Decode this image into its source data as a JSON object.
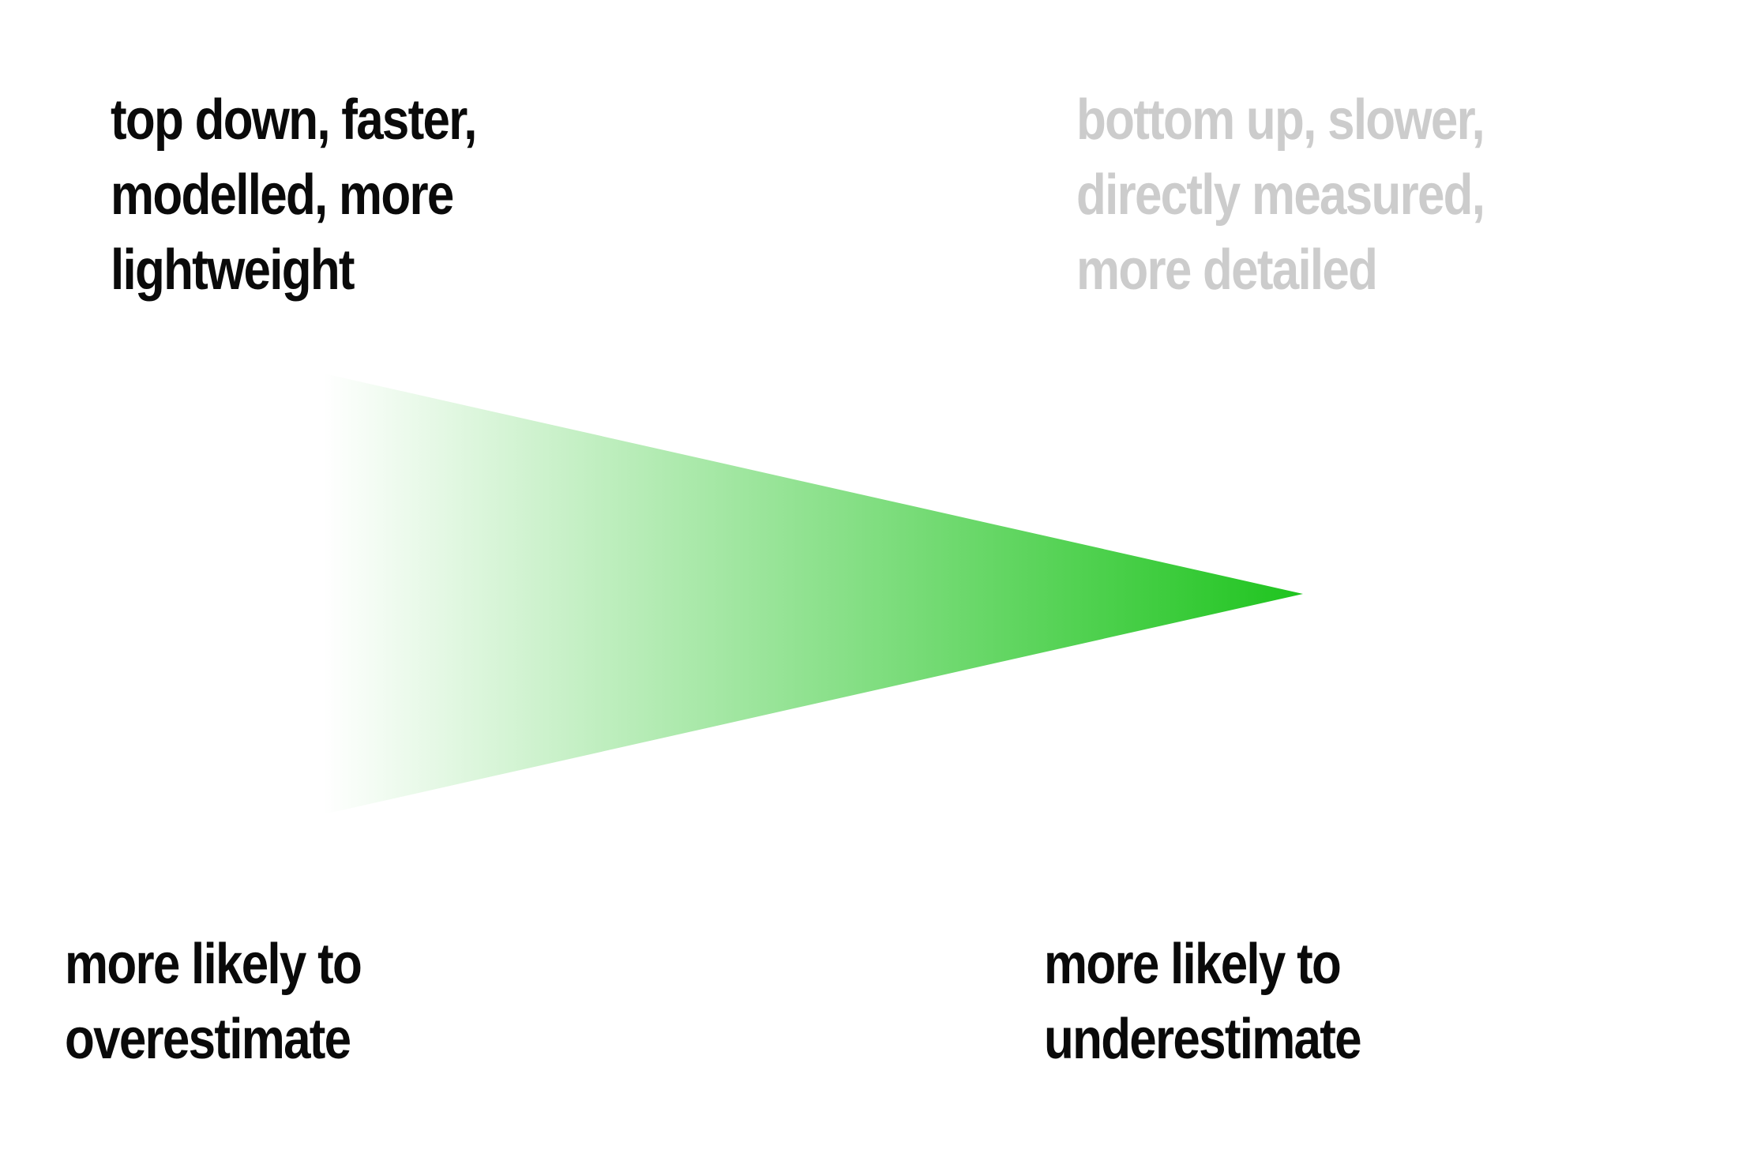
{
  "labels": {
    "top_left": "top down, faster,\nmodelled, more\nlightweight",
    "top_right": "bottom up, slower,\ndirectly measured,\nmore detailed",
    "bottom_left": "more likely to\noverestimate",
    "bottom_right": "more likely to\nunderestimate"
  },
  "colors": {
    "primary_text": "#0a0a0a",
    "muted_text": "#cccccc",
    "funnel_start": "#ffffff",
    "funnel_end": "#1ec41e"
  }
}
